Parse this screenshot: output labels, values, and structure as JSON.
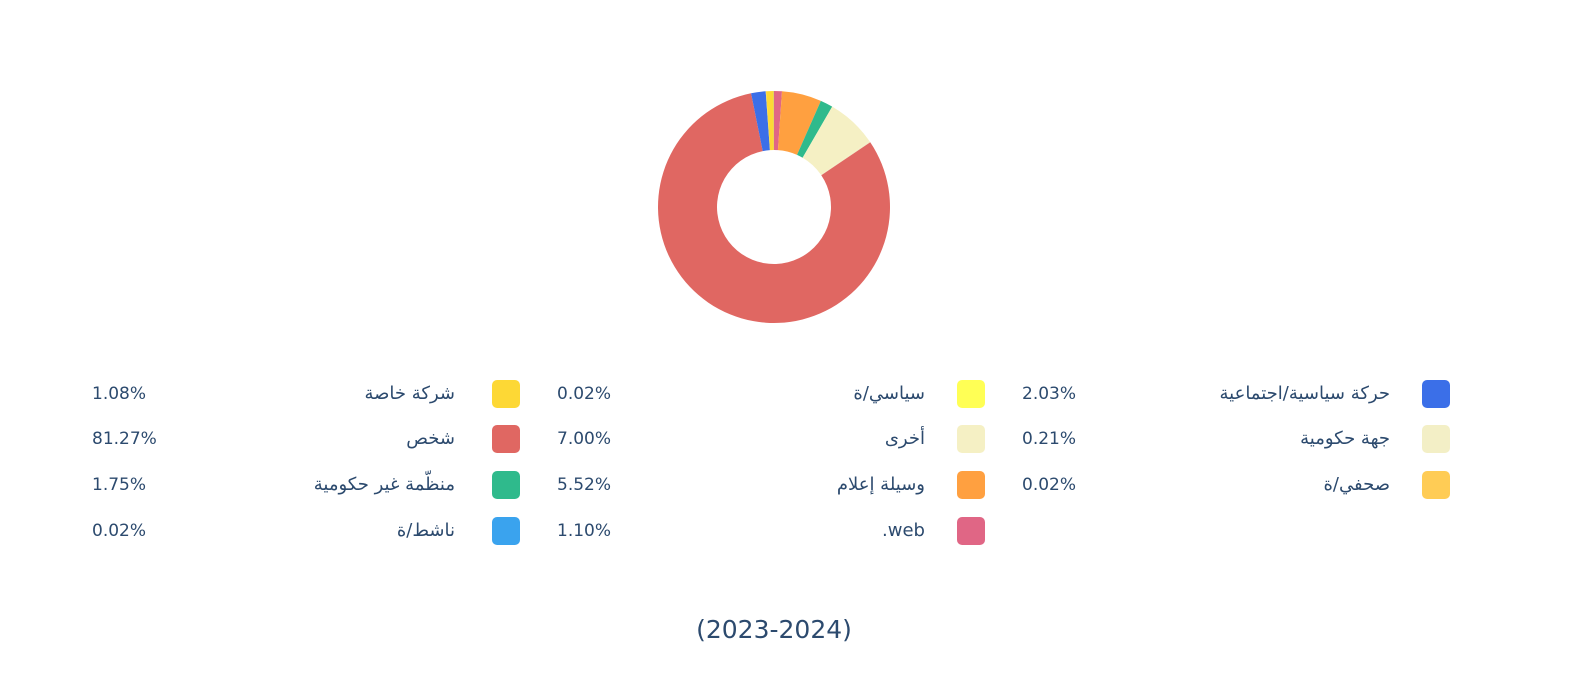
{
  "chart_data": {
    "type": "pie",
    "donut": true,
    "title": "(2023-2024)",
    "categories": [
      "web.",
      "وسيلة إعلام",
      "منظّمة غير حكومية",
      "أخرى",
      "جهة حكومية",
      "شخص",
      "حركة سياسية/اجتماعية",
      "سياسي/ة",
      "صحفي/ة",
      "شركة خاصة",
      "ناشط/ة"
    ],
    "values": [
      1.1,
      5.52,
      1.75,
      7.0,
      0.21,
      81.27,
      2.03,
      0.02,
      0.02,
      1.08,
      0.02
    ],
    "value_labels": [
      "1.10%",
      "5.52%",
      "1.75%",
      "7.00%",
      "0.21%",
      "81.27%",
      "2.03%",
      "0.02%",
      "0.02%",
      "1.08%",
      "0.02%"
    ],
    "colors": [
      "#e06685",
      "#ffa040",
      "#2fba8c",
      "#f5f0c4",
      "#f3efc6",
      "#e06762",
      "#3b6fe8",
      "#ffff55",
      "#ffcc55",
      "#fdd835",
      "#3aa3ee"
    ]
  }
}
